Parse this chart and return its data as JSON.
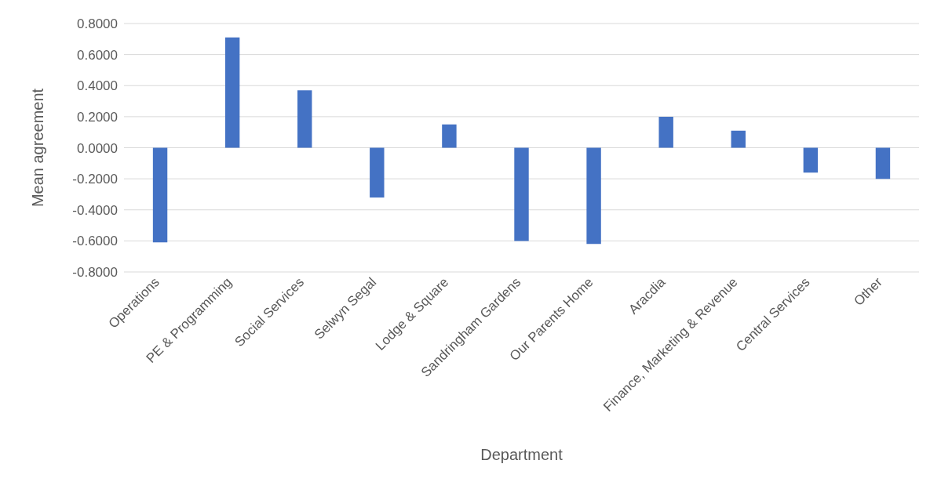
{
  "chart_data": {
    "type": "bar",
    "xlabel": "Department",
    "ylabel": "Mean agreement",
    "categories": [
      "Operations",
      "PE & Programming",
      "Social Services",
      "Selwyn Segal",
      "Lodge & Square",
      "Sandringham Gardens",
      "Our Parents Home",
      "Aracdia",
      "Finance, Marketing & Revenue",
      "Central Services",
      "Other"
    ],
    "values": [
      -0.61,
      0.71,
      0.37,
      -0.32,
      0.15,
      -0.6,
      -0.62,
      0.2,
      0.11,
      -0.16,
      -0.2
    ],
    "color": "#4472c4",
    "ylim": [
      -0.8,
      0.8
    ],
    "yticks": [
      {
        "value": -0.8,
        "label": "-0.8000"
      },
      {
        "value": -0.6,
        "label": "-0.6000"
      },
      {
        "value": -0.4,
        "label": "-0.4000"
      },
      {
        "value": -0.2,
        "label": "-0.2000"
      },
      {
        "value": 0,
        "label": "0.0000"
      },
      {
        "value": 0.2,
        "label": "0.2000"
      },
      {
        "value": 0.4,
        "label": "0.4000"
      },
      {
        "value": 0.6,
        "label": "0.6000"
      },
      {
        "value": 0.8,
        "label": "0.8000"
      }
    ],
    "grid": "y"
  }
}
